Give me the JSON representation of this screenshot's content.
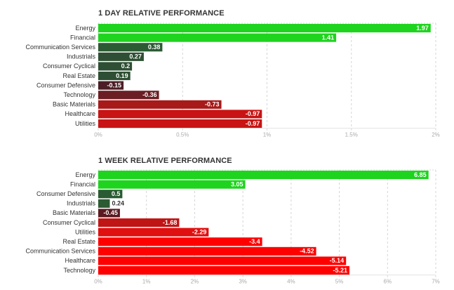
{
  "chart_data": [
    {
      "type": "bar",
      "orientation": "horizontal",
      "title": "1 DAY RELATIVE PERFORMANCE",
      "categories": [
        "Energy",
        "Financial",
        "Communication Services",
        "Industrials",
        "Consumer Cyclical",
        "Real Estate",
        "Consumer Defensive",
        "Technology",
        "Basic Materials",
        "Healthcare",
        "Utilities"
      ],
      "values": [
        1.97,
        1.41,
        0.38,
        0.27,
        0.2,
        0.19,
        -0.15,
        -0.36,
        -0.73,
        -0.97,
        -0.97
      ],
      "value_labels": [
        "1.97",
        "1.41",
        "0.38",
        "0.27",
        "0.2",
        "0.19",
        "-0.15",
        "-0.36",
        "-0.73",
        "-0.97",
        "-0.97"
      ],
      "bar_extent": [
        1.97,
        1.41,
        0.38,
        0.27,
        0.2,
        0.19,
        0.15,
        0.36,
        0.73,
        0.97,
        0.97
      ],
      "colors": [
        "#1ed41e",
        "#1ed41e",
        "#2b5b33",
        "#2e4f33",
        "#2e4f33",
        "#2e4f33",
        "#4b1e25",
        "#6b1f24",
        "#a81a1a",
        "#c81414",
        "#c81414"
      ],
      "xlim": [
        0,
        2
      ],
      "xticks": [
        "0%",
        "0.5%",
        "1%",
        "1.5%",
        "2%"
      ],
      "tick_values": [
        0,
        0.5,
        1,
        1.5,
        2
      ],
      "grid": true
    },
    {
      "type": "bar",
      "orientation": "horizontal",
      "title": "1 WEEK RELATIVE PERFORMANCE",
      "categories": [
        "Energy",
        "Financial",
        "Consumer Defensive",
        "Industrials",
        "Basic Materials",
        "Consumer Cyclical",
        "Utilities",
        "Real Estate",
        "Communication Services",
        "Healthcare",
        "Technology"
      ],
      "values": [
        6.85,
        3.05,
        0.5,
        0.24,
        -0.45,
        -1.68,
        -2.29,
        -3.4,
        -4.52,
        -5.14,
        -5.21
      ],
      "value_labels": [
        "6.85",
        "3.05",
        "0.5",
        "0.24",
        "-0.45",
        "-1.68",
        "-2.29",
        "-3.4",
        "-4.52",
        "-5.14",
        "-5.21"
      ],
      "bar_extent": [
        6.85,
        3.05,
        0.5,
        0.24,
        0.45,
        1.68,
        2.29,
        3.4,
        4.52,
        5.14,
        5.21
      ],
      "colors": [
        "#1ed41e",
        "#1ed41e",
        "#2b5b33",
        "#2b5b33",
        "#5a1a20",
        "#c01515",
        "#e01010",
        "#ff0000",
        "#ff0000",
        "#ff0000",
        "#ff0000"
      ],
      "xlim": [
        0,
        7
      ],
      "xticks": [
        "0%",
        "1%",
        "2%",
        "3%",
        "4%",
        "5%",
        "6%",
        "7%"
      ],
      "tick_values": [
        0,
        1,
        2,
        3,
        4,
        5,
        6,
        7
      ],
      "grid": true
    }
  ]
}
